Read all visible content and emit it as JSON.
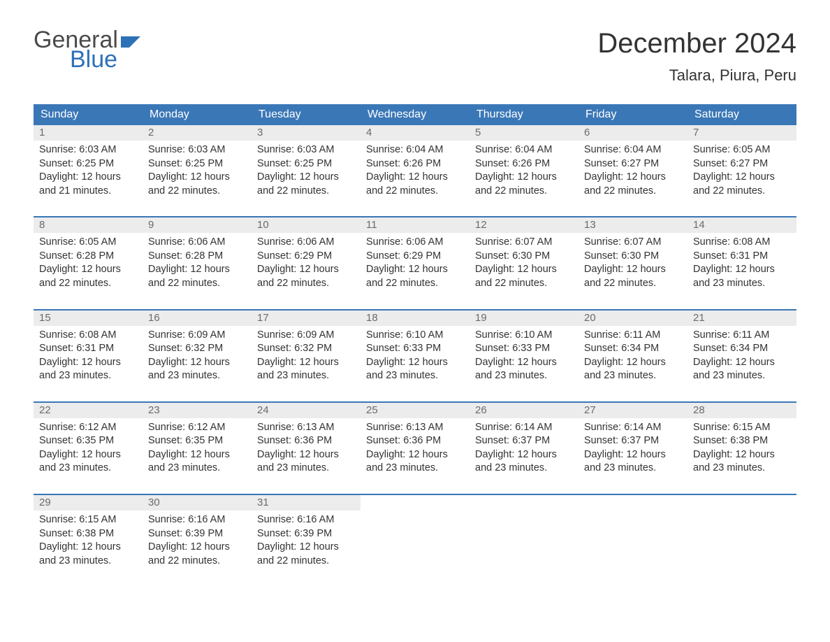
{
  "logo": {
    "text1": "General",
    "text2": "Blue",
    "color_general": "#4a4a4a",
    "color_blue": "#2d71b8",
    "flag_color": "#2d71b8"
  },
  "title": "December 2024",
  "location": "Talara, Piura, Peru",
  "colors": {
    "header_bg": "#3a77b7",
    "header_text": "#ffffff",
    "daynum_bg": "#ececec",
    "daynum_text": "#6b6b6b",
    "body_text": "#333333",
    "week_border": "#3a77b7",
    "page_bg": "#ffffff"
  },
  "fonts": {
    "title_size_pt": 30,
    "location_size_pt": 16,
    "dow_size_pt": 12,
    "body_size_pt": 11
  },
  "days_of_week": [
    "Sunday",
    "Monday",
    "Tuesday",
    "Wednesday",
    "Thursday",
    "Friday",
    "Saturday"
  ],
  "weeks": [
    [
      {
        "n": "1",
        "sunrise": "Sunrise: 6:03 AM",
        "sunset": "Sunset: 6:25 PM",
        "d1": "Daylight: 12 hours",
        "d2": "and 21 minutes."
      },
      {
        "n": "2",
        "sunrise": "Sunrise: 6:03 AM",
        "sunset": "Sunset: 6:25 PM",
        "d1": "Daylight: 12 hours",
        "d2": "and 22 minutes."
      },
      {
        "n": "3",
        "sunrise": "Sunrise: 6:03 AM",
        "sunset": "Sunset: 6:25 PM",
        "d1": "Daylight: 12 hours",
        "d2": "and 22 minutes."
      },
      {
        "n": "4",
        "sunrise": "Sunrise: 6:04 AM",
        "sunset": "Sunset: 6:26 PM",
        "d1": "Daylight: 12 hours",
        "d2": "and 22 minutes."
      },
      {
        "n": "5",
        "sunrise": "Sunrise: 6:04 AM",
        "sunset": "Sunset: 6:26 PM",
        "d1": "Daylight: 12 hours",
        "d2": "and 22 minutes."
      },
      {
        "n": "6",
        "sunrise": "Sunrise: 6:04 AM",
        "sunset": "Sunset: 6:27 PM",
        "d1": "Daylight: 12 hours",
        "d2": "and 22 minutes."
      },
      {
        "n": "7",
        "sunrise": "Sunrise: 6:05 AM",
        "sunset": "Sunset: 6:27 PM",
        "d1": "Daylight: 12 hours",
        "d2": "and 22 minutes."
      }
    ],
    [
      {
        "n": "8",
        "sunrise": "Sunrise: 6:05 AM",
        "sunset": "Sunset: 6:28 PM",
        "d1": "Daylight: 12 hours",
        "d2": "and 22 minutes."
      },
      {
        "n": "9",
        "sunrise": "Sunrise: 6:06 AM",
        "sunset": "Sunset: 6:28 PM",
        "d1": "Daylight: 12 hours",
        "d2": "and 22 minutes."
      },
      {
        "n": "10",
        "sunrise": "Sunrise: 6:06 AM",
        "sunset": "Sunset: 6:29 PM",
        "d1": "Daylight: 12 hours",
        "d2": "and 22 minutes."
      },
      {
        "n": "11",
        "sunrise": "Sunrise: 6:06 AM",
        "sunset": "Sunset: 6:29 PM",
        "d1": "Daylight: 12 hours",
        "d2": "and 22 minutes."
      },
      {
        "n": "12",
        "sunrise": "Sunrise: 6:07 AM",
        "sunset": "Sunset: 6:30 PM",
        "d1": "Daylight: 12 hours",
        "d2": "and 22 minutes."
      },
      {
        "n": "13",
        "sunrise": "Sunrise: 6:07 AM",
        "sunset": "Sunset: 6:30 PM",
        "d1": "Daylight: 12 hours",
        "d2": "and 22 minutes."
      },
      {
        "n": "14",
        "sunrise": "Sunrise: 6:08 AM",
        "sunset": "Sunset: 6:31 PM",
        "d1": "Daylight: 12 hours",
        "d2": "and 23 minutes."
      }
    ],
    [
      {
        "n": "15",
        "sunrise": "Sunrise: 6:08 AM",
        "sunset": "Sunset: 6:31 PM",
        "d1": "Daylight: 12 hours",
        "d2": "and 23 minutes."
      },
      {
        "n": "16",
        "sunrise": "Sunrise: 6:09 AM",
        "sunset": "Sunset: 6:32 PM",
        "d1": "Daylight: 12 hours",
        "d2": "and 23 minutes."
      },
      {
        "n": "17",
        "sunrise": "Sunrise: 6:09 AM",
        "sunset": "Sunset: 6:32 PM",
        "d1": "Daylight: 12 hours",
        "d2": "and 23 minutes."
      },
      {
        "n": "18",
        "sunrise": "Sunrise: 6:10 AM",
        "sunset": "Sunset: 6:33 PM",
        "d1": "Daylight: 12 hours",
        "d2": "and 23 minutes."
      },
      {
        "n": "19",
        "sunrise": "Sunrise: 6:10 AM",
        "sunset": "Sunset: 6:33 PM",
        "d1": "Daylight: 12 hours",
        "d2": "and 23 minutes."
      },
      {
        "n": "20",
        "sunrise": "Sunrise: 6:11 AM",
        "sunset": "Sunset: 6:34 PM",
        "d1": "Daylight: 12 hours",
        "d2": "and 23 minutes."
      },
      {
        "n": "21",
        "sunrise": "Sunrise: 6:11 AM",
        "sunset": "Sunset: 6:34 PM",
        "d1": "Daylight: 12 hours",
        "d2": "and 23 minutes."
      }
    ],
    [
      {
        "n": "22",
        "sunrise": "Sunrise: 6:12 AM",
        "sunset": "Sunset: 6:35 PM",
        "d1": "Daylight: 12 hours",
        "d2": "and 23 minutes."
      },
      {
        "n": "23",
        "sunrise": "Sunrise: 6:12 AM",
        "sunset": "Sunset: 6:35 PM",
        "d1": "Daylight: 12 hours",
        "d2": "and 23 minutes."
      },
      {
        "n": "24",
        "sunrise": "Sunrise: 6:13 AM",
        "sunset": "Sunset: 6:36 PM",
        "d1": "Daylight: 12 hours",
        "d2": "and 23 minutes."
      },
      {
        "n": "25",
        "sunrise": "Sunrise: 6:13 AM",
        "sunset": "Sunset: 6:36 PM",
        "d1": "Daylight: 12 hours",
        "d2": "and 23 minutes."
      },
      {
        "n": "26",
        "sunrise": "Sunrise: 6:14 AM",
        "sunset": "Sunset: 6:37 PM",
        "d1": "Daylight: 12 hours",
        "d2": "and 23 minutes."
      },
      {
        "n": "27",
        "sunrise": "Sunrise: 6:14 AM",
        "sunset": "Sunset: 6:37 PM",
        "d1": "Daylight: 12 hours",
        "d2": "and 23 minutes."
      },
      {
        "n": "28",
        "sunrise": "Sunrise: 6:15 AM",
        "sunset": "Sunset: 6:38 PM",
        "d1": "Daylight: 12 hours",
        "d2": "and 23 minutes."
      }
    ],
    [
      {
        "n": "29",
        "sunrise": "Sunrise: 6:15 AM",
        "sunset": "Sunset: 6:38 PM",
        "d1": "Daylight: 12 hours",
        "d2": "and 23 minutes."
      },
      {
        "n": "30",
        "sunrise": "Sunrise: 6:16 AM",
        "sunset": "Sunset: 6:39 PM",
        "d1": "Daylight: 12 hours",
        "d2": "and 22 minutes."
      },
      {
        "n": "31",
        "sunrise": "Sunrise: 6:16 AM",
        "sunset": "Sunset: 6:39 PM",
        "d1": "Daylight: 12 hours",
        "d2": "and 22 minutes."
      },
      null,
      null,
      null,
      null
    ]
  ]
}
